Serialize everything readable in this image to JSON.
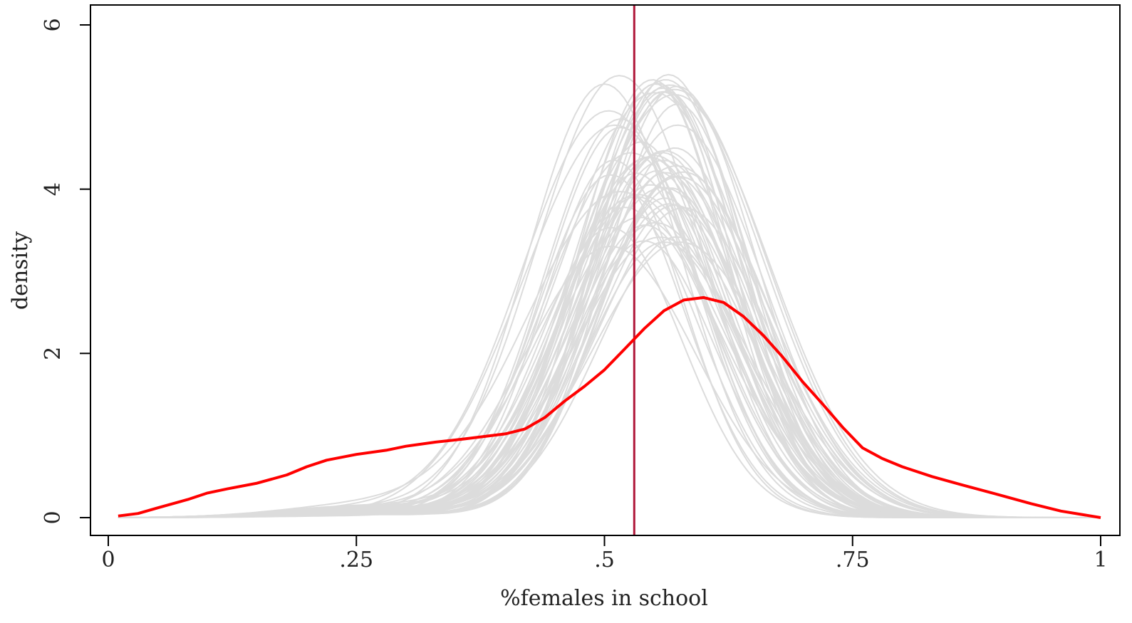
{
  "chart_data": {
    "type": "line",
    "title": "",
    "xlabel": "%females in school",
    "ylabel": "density",
    "xlim": [
      0,
      1
    ],
    "ylim": [
      0,
      6
    ],
    "x_ticks": [
      {
        "value": 0,
        "label": "0"
      },
      {
        "value": 0.25,
        "label": ".25"
      },
      {
        "value": 0.5,
        "label": ".5"
      },
      {
        "value": 0.75,
        "label": ".75"
      },
      {
        "value": 1,
        "label": "1"
      }
    ],
    "y_ticks": [
      {
        "value": 0,
        "label": "0"
      },
      {
        "value": 2,
        "label": "2"
      },
      {
        "value": 4,
        "label": "4"
      },
      {
        "value": 6,
        "label": "6"
      }
    ],
    "grid": false,
    "legend": "none",
    "reference_line": {
      "x": 0.53,
      "color": "#b0183a"
    },
    "simulated_densities": {
      "color": "#dcdcdc",
      "description_count": 60,
      "center_range": [
        0.5,
        0.58
      ],
      "peak_range": [
        3.3,
        5.45
      ],
      "sd_range": [
        0.07,
        0.095
      ]
    },
    "series": [
      {
        "color": "#ff0000",
        "x": [
          0.01,
          0.03,
          0.05,
          0.08,
          0.1,
          0.12,
          0.15,
          0.18,
          0.2,
          0.22,
          0.25,
          0.28,
          0.3,
          0.33,
          0.36,
          0.4,
          0.42,
          0.44,
          0.46,
          0.48,
          0.5,
          0.52,
          0.54,
          0.56,
          0.58,
          0.6,
          0.62,
          0.64,
          0.66,
          0.68,
          0.7,
          0.72,
          0.74,
          0.76,
          0.78,
          0.8,
          0.83,
          0.86,
          0.9,
          0.93,
          0.96,
          1.0
        ],
        "y": [
          0.02,
          0.05,
          0.12,
          0.22,
          0.3,
          0.35,
          0.42,
          0.52,
          0.62,
          0.7,
          0.77,
          0.82,
          0.87,
          0.92,
          0.96,
          1.02,
          1.08,
          1.22,
          1.42,
          1.6,
          1.8,
          2.05,
          2.3,
          2.52,
          2.65,
          2.68,
          2.62,
          2.45,
          2.22,
          1.95,
          1.65,
          1.38,
          1.1,
          0.85,
          0.72,
          0.62,
          0.5,
          0.4,
          0.27,
          0.17,
          0.08,
          0.0
        ]
      }
    ]
  }
}
